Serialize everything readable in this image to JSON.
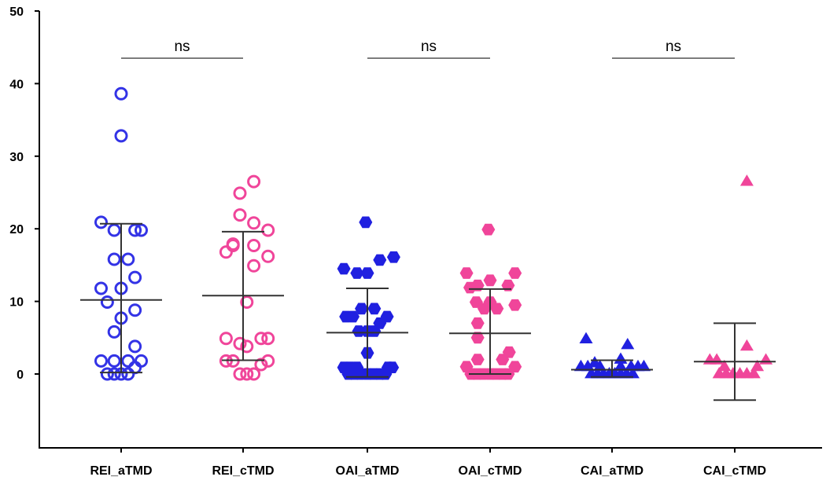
{
  "chart_data": {
    "type": "scatter",
    "title": "",
    "xlabel": "",
    "ylabel": "",
    "ylim": [
      -10,
      50
    ],
    "yticks": [
      0,
      10,
      20,
      30,
      40,
      50
    ],
    "categories": [
      "REI_aTMD",
      "REI_cTMD",
      "OAI_aTMD",
      "OAI_cTMD",
      "CAI_aTMD",
      "CAI_cTMD"
    ],
    "series": [
      {
        "category": "REI_aTMD",
        "marker": "circle-open",
        "color": "#3333e6",
        "mean": 10.2,
        "sd_low": 0.2,
        "sd_high": 20.7,
        "points": [
          {
            "dx": 0.0,
            "y": 38.6
          },
          {
            "dx": 0.0,
            "y": 32.8
          },
          {
            "dx": -0.58,
            "y": 20.9
          },
          {
            "dx": -0.2,
            "y": 19.8
          },
          {
            "dx": 0.4,
            "y": 19.8
          },
          {
            "dx": 0.58,
            "y": 19.8
          },
          {
            "dx": -0.2,
            "y": 15.8
          },
          {
            "dx": 0.2,
            "y": 15.8
          },
          {
            "dx": 0.4,
            "y": 13.3
          },
          {
            "dx": -0.58,
            "y": 11.8
          },
          {
            "dx": 0.0,
            "y": 11.8
          },
          {
            "dx": -0.4,
            "y": 9.9
          },
          {
            "dx": 0.4,
            "y": 8.8
          },
          {
            "dx": 0.0,
            "y": 7.7
          },
          {
            "dx": -0.2,
            "y": 5.8
          },
          {
            "dx": 0.4,
            "y": 3.8
          },
          {
            "dx": -0.58,
            "y": 1.8
          },
          {
            "dx": -0.2,
            "y": 1.8
          },
          {
            "dx": 0.2,
            "y": 1.8
          },
          {
            "dx": 0.58,
            "y": 1.8
          },
          {
            "dx": 0.4,
            "y": 0.9
          },
          {
            "dx": -0.4,
            "y": 0.0
          },
          {
            "dx": -0.2,
            "y": 0.0
          },
          {
            "dx": 0.0,
            "y": 0.0
          },
          {
            "dx": 0.2,
            "y": 0.0
          }
        ]
      },
      {
        "category": "REI_cTMD",
        "marker": "circle-open",
        "color": "#f0459a",
        "mean": 10.8,
        "sd_low": 1.9,
        "sd_high": 19.6,
        "points": [
          {
            "dx": 0.31,
            "y": 26.5
          },
          {
            "dx": -0.09,
            "y": 24.9
          },
          {
            "dx": -0.09,
            "y": 21.9
          },
          {
            "dx": 0.31,
            "y": 20.8
          },
          {
            "dx": 0.72,
            "y": 19.8
          },
          {
            "dx": -0.29,
            "y": 17.9
          },
          {
            "dx": -0.29,
            "y": 17.7
          },
          {
            "dx": 0.31,
            "y": 17.7
          },
          {
            "dx": -0.49,
            "y": 16.8
          },
          {
            "dx": 0.72,
            "y": 16.2
          },
          {
            "dx": 0.31,
            "y": 14.9
          },
          {
            "dx": 0.11,
            "y": 9.9
          },
          {
            "dx": -0.49,
            "y": 4.9
          },
          {
            "dx": 0.52,
            "y": 4.9
          },
          {
            "dx": 0.72,
            "y": 4.9
          },
          {
            "dx": -0.09,
            "y": 4.2
          },
          {
            "dx": 0.11,
            "y": 3.8
          },
          {
            "dx": -0.49,
            "y": 1.8
          },
          {
            "dx": -0.29,
            "y": 1.8
          },
          {
            "dx": 0.72,
            "y": 1.8
          },
          {
            "dx": 0.52,
            "y": 1.3
          },
          {
            "dx": -0.09,
            "y": 0.0
          },
          {
            "dx": 0.11,
            "y": 0.0
          },
          {
            "dx": 0.31,
            "y": 0.0
          }
        ]
      },
      {
        "category": "OAI_aTMD",
        "marker": "hexagon-filled",
        "color": "#2020e0",
        "mean": 5.7,
        "sd_low": -0.4,
        "sd_high": 11.8,
        "points": [
          {
            "dx": -0.05,
            "y": 20.9
          },
          {
            "dx": 0.76,
            "y": 16.1
          },
          {
            "dx": 0.36,
            "y": 15.7
          },
          {
            "dx": -0.68,
            "y": 14.5
          },
          {
            "dx": -0.3,
            "y": 13.9
          },
          {
            "dx": 0.0,
            "y": 13.9
          },
          {
            "dx": -0.17,
            "y": 9.0
          },
          {
            "dx": 0.2,
            "y": 9.0
          },
          {
            "dx": -0.62,
            "y": 7.9
          },
          {
            "dx": -0.42,
            "y": 7.9
          },
          {
            "dx": 0.36,
            "y": 7.0
          },
          {
            "dx": 0.57,
            "y": 7.9
          },
          {
            "dx": -0.25,
            "y": 5.9
          },
          {
            "dx": 0.0,
            "y": 5.9
          },
          {
            "dx": 0.2,
            "y": 5.9
          },
          {
            "dx": 0.0,
            "y": 2.9
          },
          {
            "dx": -0.68,
            "y": 0.9
          },
          {
            "dx": -0.5,
            "y": 0.9
          },
          {
            "dx": -0.3,
            "y": 0.9
          },
          {
            "dx": 0.6,
            "y": 0.9
          },
          {
            "dx": 0.72,
            "y": 0.9
          },
          {
            "dx": -0.55,
            "y": 0.0
          },
          {
            "dx": -0.38,
            "y": 0.0
          },
          {
            "dx": -0.2,
            "y": 0.0
          },
          {
            "dx": 0.0,
            "y": 0.0
          },
          {
            "dx": 0.18,
            "y": 0.0
          },
          {
            "dx": 0.36,
            "y": 0.0
          },
          {
            "dx": 0.52,
            "y": 0.0
          }
        ]
      },
      {
        "category": "OAI_cTMD",
        "marker": "hexagon-filled",
        "color": "#f0459a",
        "mean": 5.6,
        "sd_low": 0.0,
        "sd_high": 11.7,
        "points": [
          {
            "dx": -0.05,
            "y": 19.9
          },
          {
            "dx": -0.68,
            "y": 13.9
          },
          {
            "dx": 0.72,
            "y": 13.9
          },
          {
            "dx": 0.0,
            "y": 12.9
          },
          {
            "dx": -0.36,
            "y": 12.2
          },
          {
            "dx": 0.52,
            "y": 12.2
          },
          {
            "dx": -0.58,
            "y": 11.9
          },
          {
            "dx": -0.4,
            "y": 9.9
          },
          {
            "dx": 0.0,
            "y": 9.9
          },
          {
            "dx": 0.72,
            "y": 9.5
          },
          {
            "dx": -0.17,
            "y": 9.0
          },
          {
            "dx": 0.2,
            "y": 9.0
          },
          {
            "dx": -0.36,
            "y": 7.0
          },
          {
            "dx": -0.36,
            "y": 5.0
          },
          {
            "dx": 0.55,
            "y": 3.0
          },
          {
            "dx": -0.36,
            "y": 2.0
          },
          {
            "dx": 0.36,
            "y": 2.0
          },
          {
            "dx": -0.68,
            "y": 1.0
          },
          {
            "dx": 0.72,
            "y": 1.0
          },
          {
            "dx": -0.55,
            "y": 0.0
          },
          {
            "dx": -0.38,
            "y": 0.0
          },
          {
            "dx": -0.2,
            "y": 0.0
          },
          {
            "dx": 0.0,
            "y": 0.0
          },
          {
            "dx": 0.18,
            "y": 0.0
          },
          {
            "dx": 0.36,
            "y": 0.0
          },
          {
            "dx": 0.52,
            "y": 0.0
          }
        ]
      },
      {
        "category": "CAI_aTMD",
        "marker": "triangle-filled",
        "color": "#2020e0",
        "mean": 0.6,
        "sd_low": -0.4,
        "sd_high": 1.9,
        "points": [
          {
            "dx": -0.75,
            "y": 4.8
          },
          {
            "dx": 0.45,
            "y": 4.0
          },
          {
            "dx": 0.25,
            "y": 2.0
          },
          {
            "dx": -0.5,
            "y": 1.5
          },
          {
            "dx": -0.9,
            "y": 1.0
          },
          {
            "dx": -0.7,
            "y": 1.0
          },
          {
            "dx": -0.35,
            "y": 1.0
          },
          {
            "dx": 0.25,
            "y": 1.0
          },
          {
            "dx": 0.55,
            "y": 1.0
          },
          {
            "dx": 0.75,
            "y": 1.0
          },
          {
            "dx": 0.92,
            "y": 1.0
          },
          {
            "dx": -0.6,
            "y": 0.0
          },
          {
            "dx": -0.42,
            "y": 0.0
          },
          {
            "dx": -0.25,
            "y": 0.0
          },
          {
            "dx": -0.08,
            "y": 0.0
          },
          {
            "dx": 0.08,
            "y": 0.0
          },
          {
            "dx": 0.25,
            "y": 0.0
          },
          {
            "dx": 0.42,
            "y": 0.0
          },
          {
            "dx": 0.6,
            "y": 0.0
          }
        ]
      },
      {
        "category": "CAI_cTMD",
        "marker": "triangle-filled",
        "color": "#f0459a",
        "mean": 1.7,
        "sd_low": -3.6,
        "sd_high": 7.0,
        "points": [
          {
            "dx": 0.35,
            "y": 26.5
          },
          {
            "dx": 0.35,
            "y": 3.8
          },
          {
            "dx": -0.72,
            "y": 1.9
          },
          {
            "dx": -0.52,
            "y": 1.9
          },
          {
            "dx": 0.9,
            "y": 1.9
          },
          {
            "dx": -0.3,
            "y": 1.0
          },
          {
            "dx": 0.65,
            "y": 1.0
          },
          {
            "dx": -0.45,
            "y": 0.0
          },
          {
            "dx": -0.25,
            "y": 0.0
          },
          {
            "dx": -0.05,
            "y": 0.0
          },
          {
            "dx": 0.15,
            "y": 0.0
          },
          {
            "dx": 0.35,
            "y": 0.0
          },
          {
            "dx": 0.55,
            "y": 0.0
          }
        ]
      }
    ],
    "significance": [
      {
        "from": "REI_aTMD",
        "to": "REI_cTMD",
        "label": "ns",
        "y": 43.5
      },
      {
        "from": "OAI_aTMD",
        "to": "OAI_cTMD",
        "label": "ns",
        "y": 43.5
      },
      {
        "from": "CAI_aTMD",
        "to": "CAI_cTMD",
        "label": "ns",
        "y": 43.5
      }
    ]
  }
}
